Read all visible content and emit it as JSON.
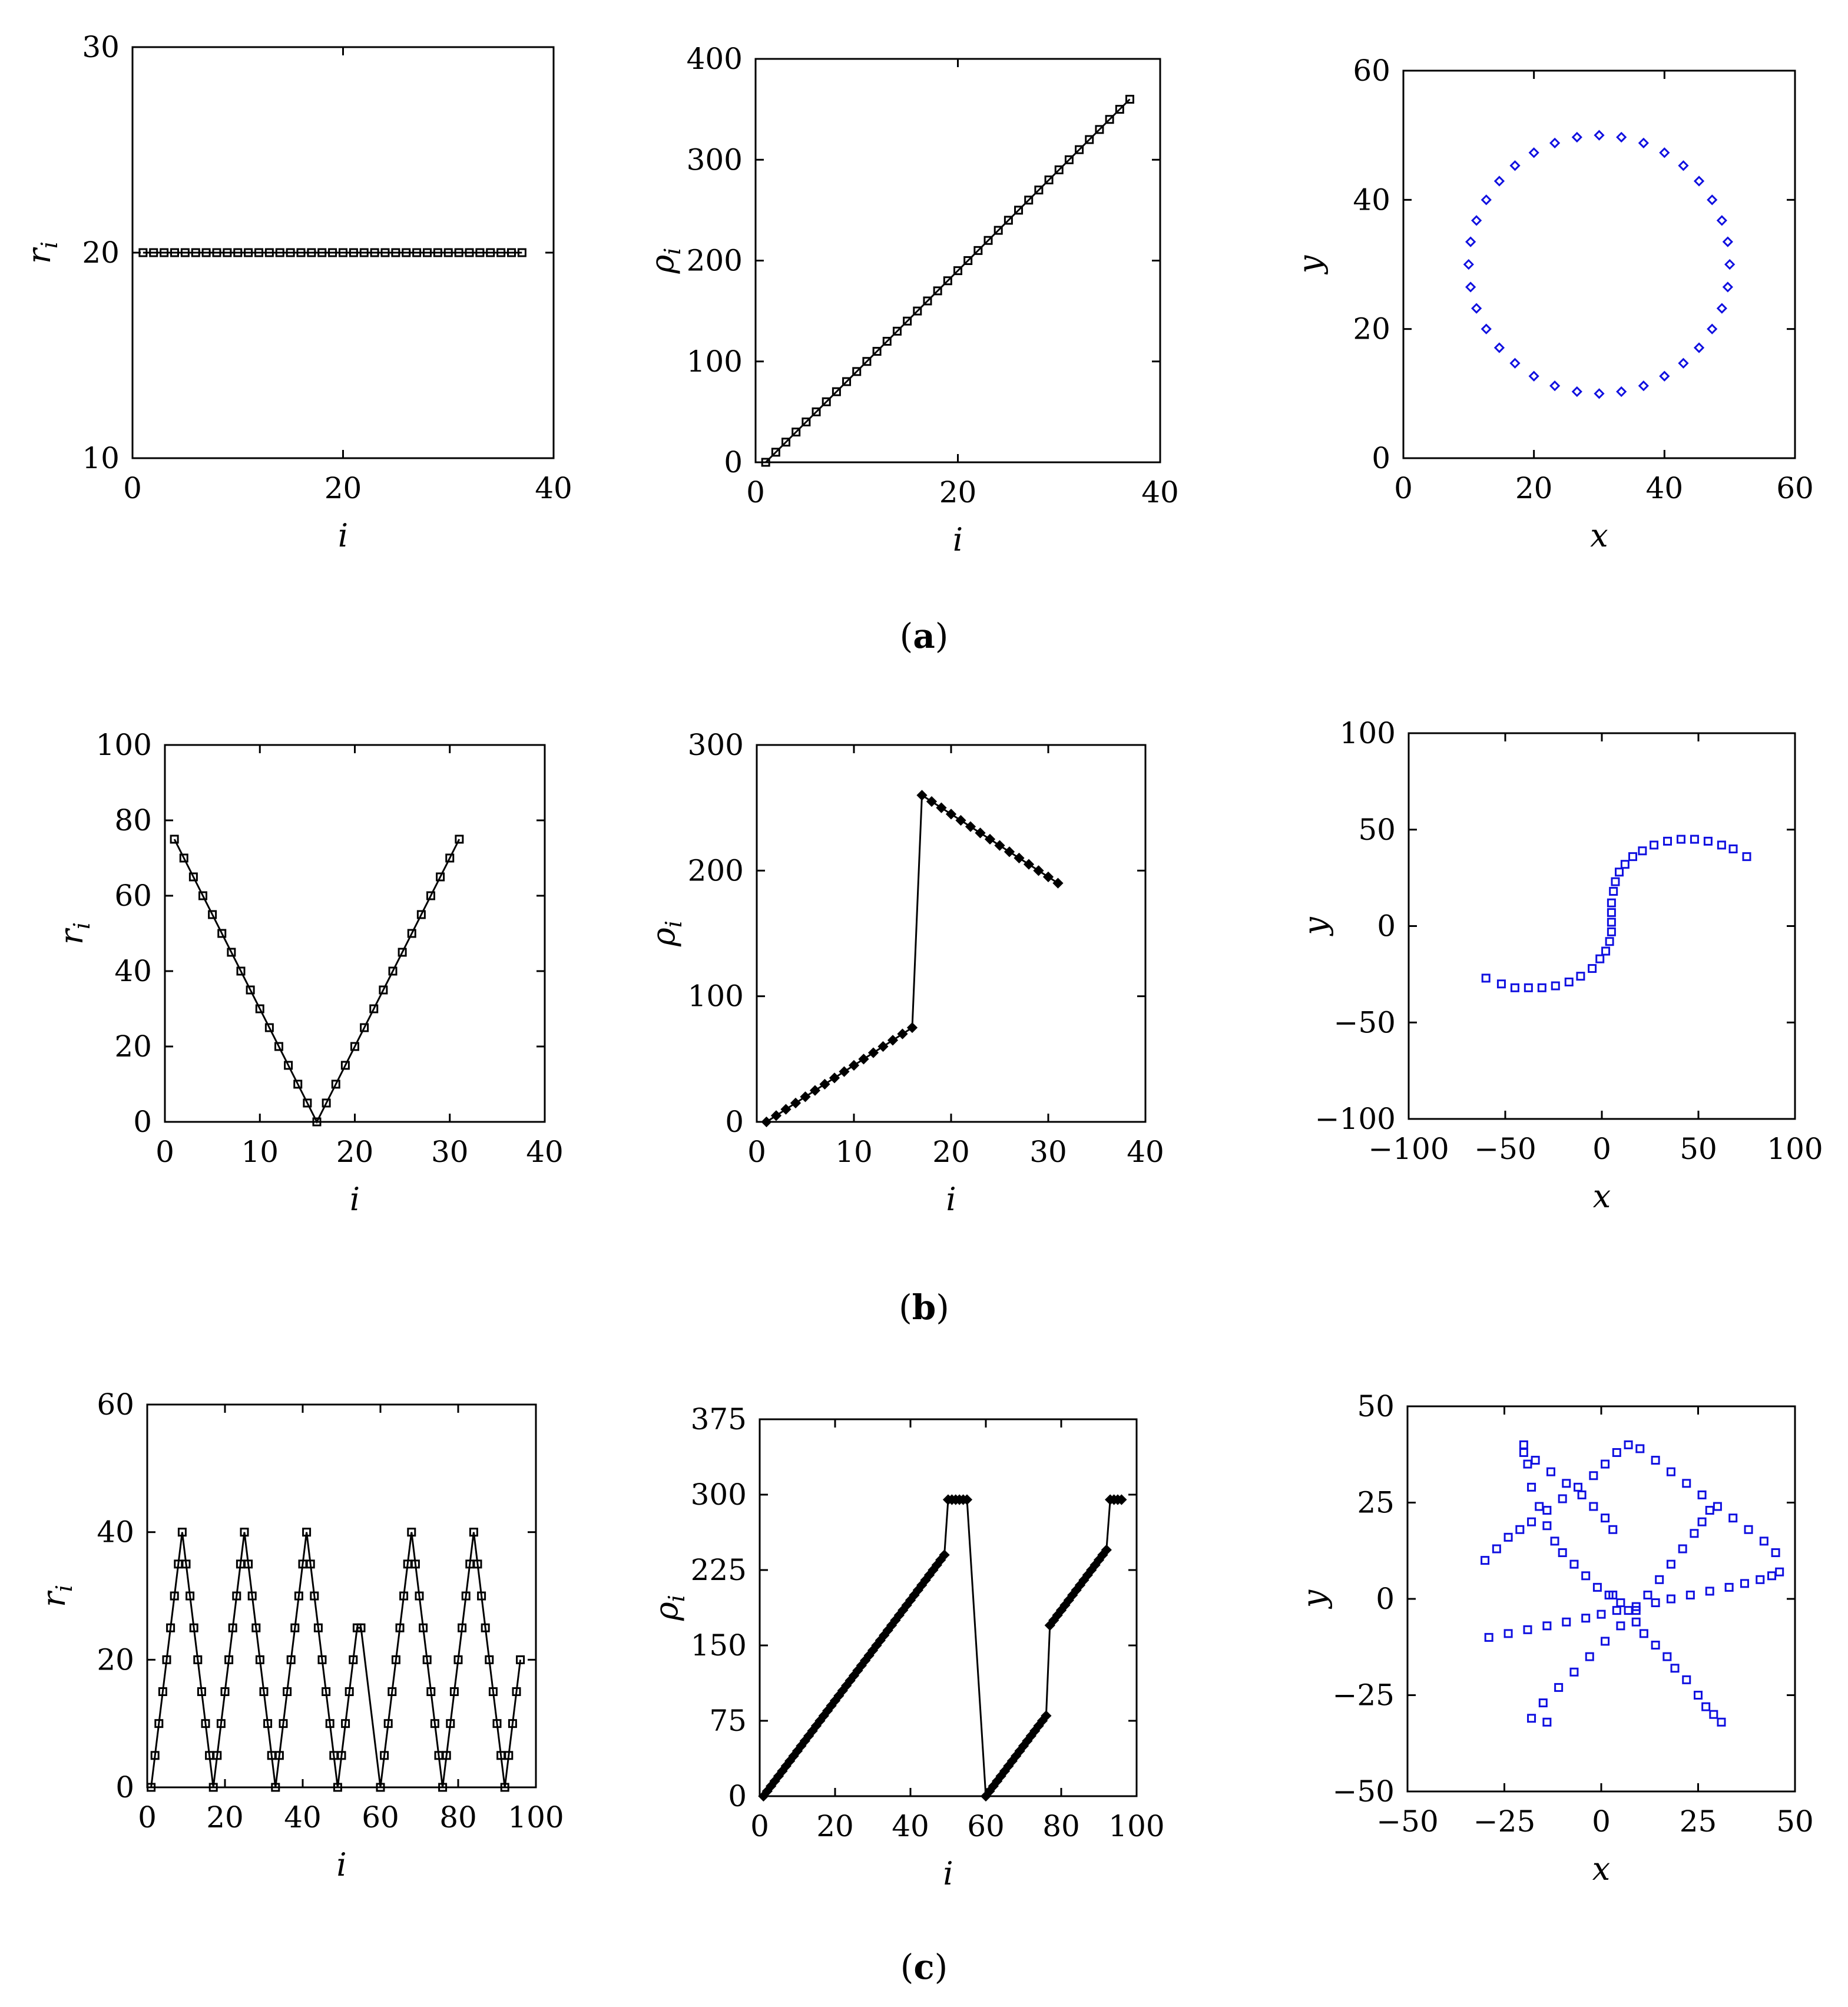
{
  "captions": {
    "a": "a",
    "b": "b",
    "c": "c"
  },
  "colors": {
    "black": "#000000",
    "blue": "#1010e0"
  },
  "chart_data": [
    {
      "id": "a1",
      "type": "line",
      "marker": "square",
      "color": "#000000",
      "xlabel": "i",
      "ylabel": "r_i",
      "xlim": [
        0,
        40
      ],
      "ylim": [
        10,
        30
      ],
      "xticks": [
        0,
        20,
        40
      ],
      "yticks": [
        10,
        20,
        30
      ],
      "x": [
        1,
        2,
        3,
        4,
        5,
        6,
        7,
        8,
        9,
        10,
        11,
        12,
        13,
        14,
        15,
        16,
        17,
        18,
        19,
        20,
        21,
        22,
        23,
        24,
        25,
        26,
        27,
        28,
        29,
        30,
        31,
        32,
        33,
        34,
        35,
        36,
        37
      ],
      "y": [
        20,
        20,
        20,
        20,
        20,
        20,
        20,
        20,
        20,
        20,
        20,
        20,
        20,
        20,
        20,
        20,
        20,
        20,
        20,
        20,
        20,
        20,
        20,
        20,
        20,
        20,
        20,
        20,
        20,
        20,
        20,
        20,
        20,
        20,
        20,
        20,
        20
      ]
    },
    {
      "id": "a2",
      "type": "line",
      "marker": "square",
      "color": "#000000",
      "xlabel": "i",
      "ylabel": "ρ_i",
      "xlim": [
        0,
        40
      ],
      "ylim": [
        0,
        400
      ],
      "xticks": [
        0,
        20,
        40
      ],
      "yticks": [
        0,
        100,
        200,
        300,
        400
      ],
      "x": [
        1,
        2,
        3,
        4,
        5,
        6,
        7,
        8,
        9,
        10,
        11,
        12,
        13,
        14,
        15,
        16,
        17,
        18,
        19,
        20,
        21,
        22,
        23,
        24,
        25,
        26,
        27,
        28,
        29,
        30,
        31,
        32,
        33,
        34,
        35,
        36,
        37
      ],
      "y": [
        0,
        10,
        20,
        30,
        40,
        50,
        60,
        70,
        80,
        90,
        100,
        110,
        120,
        130,
        140,
        150,
        160,
        170,
        180,
        190,
        200,
        210,
        220,
        230,
        240,
        250,
        260,
        270,
        280,
        290,
        300,
        310,
        320,
        330,
        340,
        350,
        360
      ]
    },
    {
      "id": "a3",
      "type": "scatter",
      "marker": "diamond",
      "color": "#1010e0",
      "xlabel": "x",
      "ylabel": "y",
      "xlim": [
        0,
        60
      ],
      "ylim": [
        0,
        60
      ],
      "xticks": [
        0,
        20,
        40,
        60
      ],
      "yticks": [
        0,
        20,
        40,
        60
      ],
      "x": [
        50.0,
        49.7,
        48.8,
        47.3,
        45.3,
        42.9,
        40.0,
        36.8,
        33.4,
        30.0,
        26.6,
        23.2,
        20.0,
        17.1,
        14.7,
        12.7,
        11.2,
        10.3,
        10.0,
        10.3,
        11.2,
        12.7,
        14.7,
        17.1,
        20.0,
        23.2,
        26.6,
        30.0,
        33.4,
        36.8,
        40.0,
        42.9,
        45.3,
        47.3,
        48.8,
        49.7
      ],
      "y": [
        30.0,
        33.5,
        36.8,
        40.0,
        42.9,
        45.3,
        47.3,
        48.8,
        49.7,
        50.0,
        49.7,
        48.8,
        47.3,
        45.3,
        42.9,
        40.0,
        36.8,
        33.5,
        30.0,
        26.5,
        23.2,
        20.0,
        17.1,
        14.7,
        12.7,
        11.2,
        10.3,
        10.0,
        10.3,
        11.2,
        12.7,
        14.7,
        17.1,
        20.0,
        23.2,
        26.5
      ]
    },
    {
      "id": "b1",
      "type": "line",
      "marker": "square",
      "color": "#000000",
      "xlabel": "i",
      "ylabel": "r_i",
      "xlim": [
        0,
        40
      ],
      "ylim": [
        0,
        100
      ],
      "xticks": [
        0,
        10,
        20,
        30,
        40
      ],
      "yticks": [
        0,
        20,
        40,
        60,
        80,
        100
      ],
      "x": [
        1,
        2,
        3,
        4,
        5,
        6,
        7,
        8,
        9,
        10,
        11,
        12,
        13,
        14,
        15,
        16,
        17,
        18,
        19,
        20,
        21,
        22,
        23,
        24,
        25,
        26,
        27,
        28,
        29,
        30,
        31
      ],
      "y": [
        75,
        70,
        65,
        60,
        55,
        50,
        45,
        40,
        35,
        30,
        25,
        20,
        15,
        10,
        5,
        0,
        5,
        10,
        15,
        20,
        25,
        30,
        35,
        40,
        45,
        50,
        55,
        60,
        65,
        70,
        75
      ]
    },
    {
      "id": "b2",
      "type": "line",
      "marker": "diamond",
      "color": "#000000",
      "xlabel": "i",
      "ylabel": "ρ_i",
      "xlim": [
        0,
        40
      ],
      "ylim": [
        0,
        300
      ],
      "xticks": [
        0,
        10,
        20,
        30,
        40
      ],
      "yticks": [
        0,
        100,
        200,
        300
      ],
      "x": [
        1,
        2,
        3,
        4,
        5,
        6,
        7,
        8,
        9,
        10,
        11,
        12,
        13,
        14,
        15,
        16,
        17,
        18,
        19,
        20,
        21,
        22,
        23,
        24,
        25,
        26,
        27,
        28,
        29,
        30,
        31
      ],
      "y": [
        0,
        5,
        10,
        15,
        20,
        25,
        30,
        35,
        40,
        45,
        50,
        55,
        60,
        65,
        70,
        75,
        260,
        255,
        250,
        245,
        240,
        235,
        230,
        225,
        220,
        215,
        210,
        205,
        200,
        195,
        190
      ]
    },
    {
      "id": "b3",
      "type": "scatter",
      "marker": "square",
      "color": "#1010e0",
      "xlabel": "x",
      "ylabel": "y",
      "xlim": [
        -100,
        100
      ],
      "ylim": [
        -100,
        100
      ],
      "xticks": [
        -100,
        -50,
        0,
        50,
        100
      ],
      "yticks": [
        -100,
        -50,
        0,
        50,
        100
      ],
      "x": [
        -60,
        -52,
        -45,
        -38,
        -31,
        -24,
        -17,
        -11,
        -5,
        -1,
        2,
        4,
        5,
        5,
        5,
        5,
        6,
        7,
        9,
        12,
        16,
        21,
        27,
        34,
        41,
        48,
        55,
        62,
        68,
        75
      ],
      "y": [
        -27,
        -30,
        -32,
        -32,
        -32,
        -31,
        -29,
        -26,
        -22,
        -17,
        -13,
        -8,
        -3,
        2,
        7,
        12,
        18,
        23,
        28,
        32,
        36,
        39,
        42,
        44,
        45,
        45,
        44,
        42,
        40,
        36
      ]
    },
    {
      "id": "c1",
      "type": "line",
      "marker": "square",
      "color": "#000000",
      "xlabel": "i",
      "ylabel": "r_i",
      "xlim": [
        0,
        100
      ],
      "ylim": [
        0,
        60
      ],
      "xticks": [
        0,
        20,
        40,
        60,
        80,
        100
      ],
      "yticks": [
        0,
        20,
        40,
        60
      ],
      "x": [
        1,
        2,
        3,
        4,
        5,
        6,
        7,
        8,
        9,
        10,
        11,
        12,
        13,
        14,
        15,
        16,
        17,
        18,
        19,
        20,
        21,
        22,
        23,
        24,
        25,
        26,
        27,
        28,
        29,
        30,
        31,
        32,
        33,
        34,
        35,
        36,
        37,
        38,
        39,
        40,
        41,
        42,
        43,
        44,
        45,
        46,
        47,
        48,
        49,
        50,
        51,
        52,
        53,
        54,
        55,
        60,
        61,
        62,
        63,
        64,
        65,
        66,
        67,
        68,
        69,
        70,
        71,
        72,
        73,
        74,
        75,
        76,
        77,
        78,
        79,
        80,
        81,
        82,
        83,
        84,
        85,
        86,
        87,
        88,
        89,
        90,
        91,
        92,
        93,
        94,
        95,
        96
      ],
      "y": [
        0,
        5,
        10,
        15,
        20,
        25,
        30,
        35,
        40,
        35,
        30,
        25,
        20,
        15,
        10,
        5,
        0,
        5,
        10,
        15,
        20,
        25,
        30,
        35,
        40,
        35,
        30,
        25,
        20,
        15,
        10,
        5,
        0,
        5,
        10,
        15,
        20,
        25,
        30,
        35,
        40,
        35,
        30,
        25,
        20,
        15,
        10,
        5,
        0,
        5,
        10,
        15,
        20,
        25,
        25,
        0,
        5,
        10,
        15,
        20,
        25,
        30,
        35,
        40,
        35,
        30,
        25,
        20,
        15,
        10,
        5,
        0,
        5,
        10,
        15,
        20,
        25,
        30,
        35,
        40,
        35,
        30,
        25,
        20,
        15,
        10,
        5,
        0,
        5,
        10,
        15,
        20
      ]
    },
    {
      "id": "c2",
      "type": "line",
      "marker": "diamond",
      "color": "#000000",
      "xlabel": "i",
      "ylabel": "ρ_i",
      "xlim": [
        0,
        100
      ],
      "ylim": [
        0,
        375
      ],
      "xticks": [
        0,
        20,
        40,
        60,
        80,
        100
      ],
      "yticks": [
        0,
        75,
        150,
        225,
        300,
        375
      ],
      "x": [
        1,
        2,
        3,
        4,
        5,
        6,
        7,
        8,
        9,
        10,
        11,
        12,
        13,
        14,
        15,
        16,
        17,
        18,
        19,
        20,
        21,
        22,
        23,
        24,
        25,
        26,
        27,
        28,
        29,
        30,
        31,
        32,
        33,
        34,
        35,
        36,
        37,
        38,
        39,
        40,
        41,
        42,
        43,
        44,
        45,
        46,
        47,
        48,
        49,
        50,
        51,
        52,
        53,
        54,
        55,
        60,
        61,
        62,
        63,
        64,
        65,
        66,
        67,
        68,
        69,
        70,
        71,
        72,
        73,
        74,
        75,
        76,
        77,
        78,
        79,
        80,
        81,
        82,
        83,
        84,
        85,
        86,
        87,
        88,
        89,
        90,
        91,
        92,
        93,
        94,
        95,
        96
      ],
      "y": [
        0,
        5,
        10,
        15,
        20,
        25,
        30,
        35,
        40,
        45,
        50,
        55,
        60,
        65,
        70,
        75,
        80,
        85,
        90,
        95,
        100,
        105,
        110,
        115,
        120,
        125,
        130,
        135,
        140,
        145,
        150,
        155,
        160,
        165,
        170,
        175,
        180,
        185,
        190,
        195,
        200,
        205,
        210,
        215,
        220,
        225,
        230,
        235,
        240,
        295,
        295,
        295,
        295,
        295,
        295,
        0,
        5,
        10,
        15,
        20,
        25,
        30,
        35,
        40,
        45,
        50,
        55,
        60,
        65,
        70,
        75,
        80,
        170,
        175,
        180,
        185,
        190,
        195,
        200,
        205,
        210,
        215,
        220,
        225,
        230,
        235,
        240,
        245,
        295,
        295,
        295,
        295
      ]
    },
    {
      "id": "c3",
      "type": "scatter",
      "marker": "square",
      "color": "#1010e0",
      "xlabel": "x",
      "ylabel": "y",
      "xlim": [
        -50,
        50
      ],
      "ylim": [
        -50,
        50
      ],
      "xticks": [
        -50,
        -25,
        0,
        25,
        50
      ],
      "yticks": [
        -50,
        -25,
        0,
        25,
        50
      ],
      "x": [
        -20,
        -19,
        -18,
        -16,
        -14,
        -12,
        -10,
        -7,
        -4,
        -1,
        2,
        3,
        5,
        7,
        9,
        11,
        14,
        17,
        19,
        22,
        25,
        27,
        29,
        31,
        -30,
        -27,
        -24,
        -21,
        -18,
        -14,
        -10,
        -6,
        -2,
        1,
        4,
        7,
        10,
        14,
        18,
        22,
        26,
        30,
        34,
        38,
        42,
        45,
        -29,
        -24,
        -19,
        -14,
        -9,
        -4,
        0,
        4,
        9,
        14,
        18,
        23,
        28,
        33,
        37,
        41,
        44,
        46,
        -18,
        -15,
        -11,
        -7,
        -3,
        1,
        5,
        9,
        12,
        15,
        18,
        21,
        24,
        26,
        28,
        -20,
        -17,
        -13,
        -9,
        -5,
        -2,
        1,
        3,
        -14
      ],
      "y": [
        40,
        35,
        29,
        24,
        19,
        15,
        12,
        9,
        6,
        3,
        1,
        1,
        -1,
        -3,
        -6,
        -9,
        -12,
        -15,
        -18,
        -21,
        -25,
        -28,
        -30,
        -32,
        10,
        13,
        16,
        18,
        20,
        23,
        26,
        29,
        32,
        35,
        38,
        40,
        39,
        36,
        33,
        30,
        27,
        24,
        21,
        18,
        15,
        12,
        -10,
        -9,
        -8,
        -7,
        -6,
        -5,
        -4,
        -3,
        -2,
        -1,
        0,
        1,
        2,
        3,
        4,
        5,
        6,
        7,
        -31,
        -27,
        -23,
        -19,
        -15,
        -11,
        -7,
        -3,
        1,
        5,
        9,
        13,
        17,
        20,
        23,
        38,
        36,
        33,
        30,
        27,
        24,
        21,
        18,
        -32
      ]
    }
  ]
}
